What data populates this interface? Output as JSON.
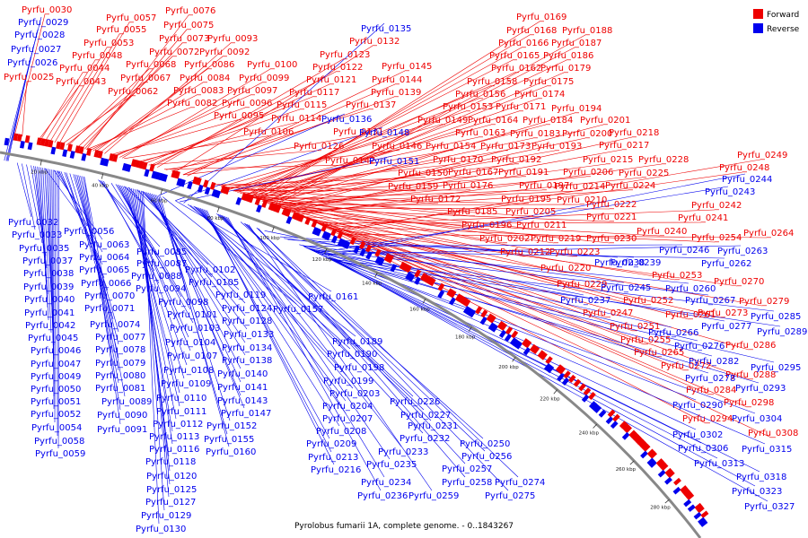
{
  "title": "Pyrolobus fumarii 1A, complete genome. - 0..1843267",
  "legend": [
    {
      "label": "Forward",
      "color": "#ee0000"
    },
    {
      "label": "Reverse",
      "color": "#0000ee"
    }
  ],
  "colors": {
    "forward": "#ee0000",
    "reverse": "#0000ee",
    "backbone": "#888888"
  },
  "scale_labels": [
    "20 kbp",
    "40 kbp",
    "60 kbp",
    "80 kbp",
    "100 kbp",
    "120 kbp",
    "140 kbp",
    "160 kbp",
    "180 kbp",
    "200 kbp",
    "220 kbp",
    "240 kbp",
    "260 kbp",
    "280 kbp"
  ],
  "forward_genes": [
    "Pyrfu_0030",
    "Pyrfu_0057",
    "Pyrfu_0076",
    "Pyrfu_0055",
    "Pyrfu_0075",
    "Pyrfu_0053",
    "Pyrfu_0073",
    "Pyrfu_0093",
    "Pyrfu_0048",
    "Pyrfu_0072",
    "Pyrfu_0092",
    "Pyrfu_0044",
    "Pyrfu_0068",
    "Pyrfu_0086",
    "Pyrfu_0100",
    "Pyrfu_0025",
    "Pyrfu_0067",
    "Pyrfu_0084",
    "Pyrfu_0099",
    "Pyrfu_0043",
    "Pyrfu_0062",
    "Pyrfu_0083",
    "Pyrfu_0097",
    "Pyrfu_0082",
    "Pyrfu_0096",
    "Pyrfu_0095",
    "Pyrfu_0106",
    "Pyrfu_0132",
    "Pyrfu_0123",
    "Pyrfu_0122",
    "Pyrfu_0145",
    "Pyrfu_0121",
    "Pyrfu_0144",
    "Pyrfu_0117",
    "Pyrfu_0139",
    "Pyrfu_0115",
    "Pyrfu_0137",
    "Pyrfu_0114",
    "Pyrfu_0131",
    "Pyrfu_0126",
    "Pyrfu_0146",
    "Pyrfu_0142",
    "Pyrfu_0169",
    "Pyrfu_0168",
    "Pyrfu_0188",
    "Pyrfu_0166",
    "Pyrfu_0187",
    "Pyrfu_0165",
    "Pyrfu_0186",
    "Pyrfu_0162",
    "Pyrfu_0179",
    "Pyrfu_0158",
    "Pyrfu_0175",
    "Pyrfu_0156",
    "Pyrfu_0174",
    "Pyrfu_0153",
    "Pyrfu_0171",
    "Pyrfu_0194",
    "Pyrfu_0149",
    "Pyrfu_0164",
    "Pyrfu_0184",
    "Pyrfu_0201",
    "Pyrfu_0163",
    "Pyrfu_0183",
    "Pyrfu_0200",
    "Pyrfu_0218",
    "Pyrfu_0154",
    "Pyrfu_0173",
    "Pyrfu_0193",
    "Pyrfu_0217",
    "Pyrfu_0170",
    "Pyrfu_0192",
    "Pyrfu_0215",
    "Pyrfu_0228",
    "Pyrfu_0150",
    "Pyrfu_0167",
    "Pyrfu_0191",
    "Pyrfu_0206",
    "Pyrfu_0225",
    "Pyrfu_0249",
    "Pyrfu_0159",
    "Pyrfu_0176",
    "Pyrfu_0197",
    "Pyrfu_0214",
    "Pyrfu_0224",
    "Pyrfu_0248",
    "Pyrfu_0172",
    "Pyrfu_0195",
    "Pyrfu_0210",
    "Pyrfu_0185",
    "Pyrfu_0205",
    "Pyrfu_0222",
    "Pyrfu_0221",
    "Pyrfu_0196",
    "Pyrfu_0211",
    "Pyrfu_0242",
    "Pyrfu_0241",
    "Pyrfu_0202",
    "Pyrfu_0219",
    "Pyrfu_0230",
    "Pyrfu_0240",
    "Pyrfu_0254",
    "Pyrfu_0264",
    "Pyrfu_0212",
    "Pyrfu_0223",
    "Pyrfu_0220",
    "Pyrfu_0253",
    "Pyrfu_0229",
    "Pyrfu_0270",
    "Pyrfu_0252",
    "Pyrfu_0279",
    "Pyrfu_0247",
    "Pyrfu_0261",
    "Pyrfu_0273",
    "Pyrfu_0251",
    "Pyrfu_0255",
    "Pyrfu_0286",
    "Pyrfu_0265",
    "Pyrfu_0272",
    "Pyrfu_0288",
    "Pyrfu_0284",
    "Pyrfu_0298",
    "Pyrfu_0294",
    "Pyrfu_0308"
  ],
  "reverse_genes": [
    "Pyrfu_0029",
    "Pyrfu_0028",
    "Pyrfu_0027",
    "Pyrfu_0026",
    "Pyrfu_0135",
    "Pyrfu_0136",
    "Pyrfu_0148",
    "Pyrfu_0151",
    "Pyrfu_0244",
    "Pyrfu_0243",
    "Pyrfu_0246",
    "Pyrfu_0263",
    "Pyrfu_0262",
    "Pyrfu_0238",
    "Pyrfu_0239",
    "Pyrfu_0245",
    "Pyrfu_0260",
    "Pyrfu_0237",
    "Pyrfu_0267",
    "Pyrfu_0285",
    "Pyrfu_0277",
    "Pyrfu_0289",
    "Pyrfu_0266",
    "Pyrfu_0276",
    "Pyrfu_0282",
    "Pyrfu_0295",
    "Pyrfu_0278",
    "Pyrfu_0293",
    "Pyrfu_0290",
    "Pyrfu_0304",
    "Pyrfu_0302",
    "Pyrfu_0306",
    "Pyrfu_0315",
    "Pyrfu_0313",
    "Pyrfu_0318",
    "Pyrfu_0323",
    "Pyrfu_0327",
    "Pyrfu_0032",
    "Pyrfu_0033",
    "Pyrfu_0035",
    "Pyrfu_0037",
    "Pyrfu_0038",
    "Pyrfu_0039",
    "Pyrfu_0040",
    "Pyrfu_0041",
    "Pyrfu_0042",
    "Pyrfu_0045",
    "Pyrfu_0046",
    "Pyrfu_0047",
    "Pyrfu_0049",
    "Pyrfu_0050",
    "Pyrfu_0051",
    "Pyrfu_0052",
    "Pyrfu_0054",
    "Pyrfu_0058",
    "Pyrfu_0059",
    "Pyrfu_0056",
    "Pyrfu_0063",
    "Pyrfu_0064",
    "Pyrfu_0065",
    "Pyrfu_0066",
    "Pyrfu_0070",
    "Pyrfu_0071",
    "Pyrfu_0074",
    "Pyrfu_0077",
    "Pyrfu_0078",
    "Pyrfu_0079",
    "Pyrfu_0080",
    "Pyrfu_0081",
    "Pyrfu_0089",
    "Pyrfu_0090",
    "Pyrfu_0091",
    "Pyrfu_0085",
    "Pyrfu_0087",
    "Pyrfu_0088",
    "Pyrfu_0094",
    "Pyrfu_0098",
    "Pyrfu_0101",
    "Pyrfu_0103",
    "Pyrfu_0104",
    "Pyrfu_0107",
    "Pyrfu_0108",
    "Pyrfu_0109",
    "Pyrfu_0110",
    "Pyrfu_0111",
    "Pyrfu_0112",
    "Pyrfu_0113",
    "Pyrfu_0116",
    "Pyrfu_0118",
    "Pyrfu_0120",
    "Pyrfu_0125",
    "Pyrfu_0127",
    "Pyrfu_0129",
    "Pyrfu_0130",
    "Pyrfu_0102",
    "Pyrfu_0105",
    "Pyrfu_0119",
    "Pyrfu_0124",
    "Pyrfu_0128",
    "Pyrfu_0133",
    "Pyrfu_0134",
    "Pyrfu_0138",
    "Pyrfu_0140",
    "Pyrfu_0141",
    "Pyrfu_0143",
    "Pyrfu_0147",
    "Pyrfu_0152",
    "Pyrfu_0155",
    "Pyrfu_0160",
    "Pyrfu_0157",
    "Pyrfu_0161",
    "Pyrfu_0189",
    "Pyrfu_0190",
    "Pyrfu_0198",
    "Pyrfu_0199",
    "Pyrfu_0203",
    "Pyrfu_0204",
    "Pyrfu_0207",
    "Pyrfu_0208",
    "Pyrfu_0209",
    "Pyrfu_0213",
    "Pyrfu_0216",
    "Pyrfu_0226",
    "Pyrfu_0227",
    "Pyrfu_0231",
    "Pyrfu_0232",
    "Pyrfu_0233",
    "Pyrfu_0235",
    "Pyrfu_0234",
    "Pyrfu_0236",
    "Pyrfu_0250",
    "Pyrfu_0256",
    "Pyrfu_0257",
    "Pyrfu_0258",
    "Pyrfu_0259",
    "Pyrfu_0274",
    "Pyrfu_0275"
  ]
}
